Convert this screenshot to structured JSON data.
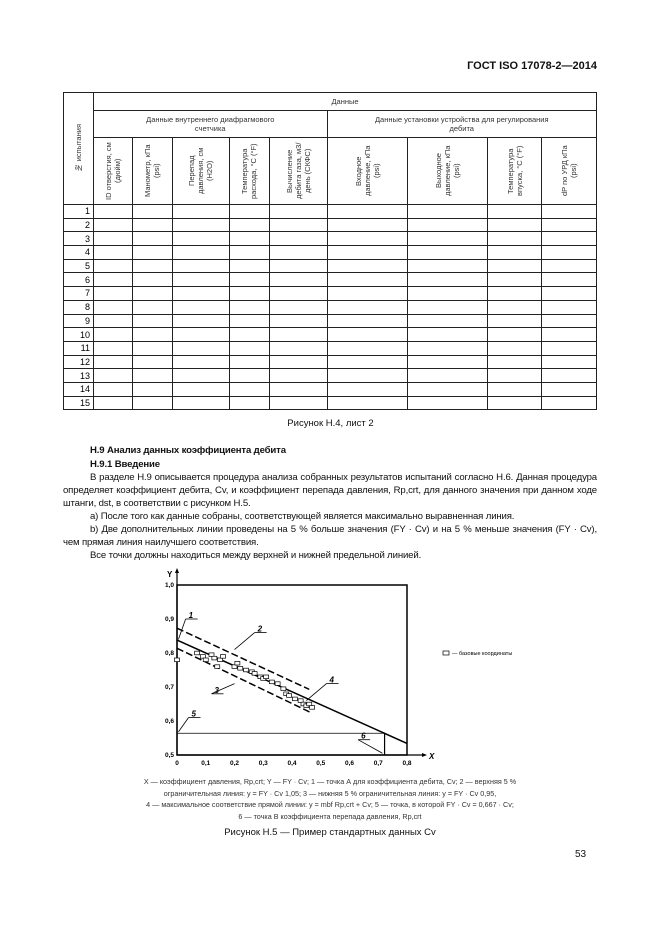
{
  "header": {
    "standard": "ГОСТ ISO 17078-2—2014"
  },
  "table": {
    "top_header": "Данные",
    "row_header": "№ испытания",
    "group1": "Данные внутреннего диафрагмового счетчика",
    "group2": "Данные установки устройства для регулирования дебита",
    "columns": [
      "ID отверстия, см (дюйм)",
      "Манометр, кПа (psi)",
      "Перепад давления, см (H2O)",
      "Температура расхода, °C (°F)",
      "Вычисление дебита газа, м3/день (СКФС)",
      "Входное давление, кПа (psi)",
      "Выходное давление, кПа (psi)",
      "Температура впуска, °C (°F)",
      "dP по УРД кПа (psi)"
    ],
    "rows": [
      "1",
      "2",
      "3",
      "4",
      "5",
      "6",
      "7",
      "8",
      "9",
      "10",
      "11",
      "12",
      "13",
      "14",
      "15"
    ]
  },
  "table_caption": "Рисунок Н.4, лист 2",
  "section": {
    "title": "Н.9 Анализ данных коэффициента дебита",
    "subtitle": "Н.9.1 Введение",
    "p1": "В разделе Н.9 описывается процедура анализа собранных результатов испытаний согласно Н.6. Данная процедура определяет коэффициент дебита, Cv, и коэффициент перепада давления, Rp,crt, для данного значения при данном ходе штанги, dst, в соответствии с рисунком Н.5.",
    "p2": "a) После того как данные собраны, соответствующей является максимально выравненная линия.",
    "p3": "b) Две дополнительных линии проведены на 5 % больше значения (FY · Cv) и на 5 % меньше значения (FY · Cv), чем прямая линия наилучшего соответствия.",
    "p4": "Все точки должны находиться между верхней и нижней предельной линией."
  },
  "chart_data": {
    "type": "scatter",
    "xlabel": "X",
    "ylabel": "Y",
    "xlim": [
      0,
      0.8
    ],
    "ylim": [
      0.5,
      1.0
    ],
    "x_ticks": [
      "0",
      "0,1",
      "0,2",
      "0,3",
      "0,4",
      "0,5",
      "0,6",
      "0,7",
      "0,8"
    ],
    "y_ticks": [
      "0,5",
      "0,6",
      "0,7",
      "0,8",
      "0,9",
      "1,0"
    ],
    "legend": "базовые координаты",
    "legend_position": "right",
    "points": [
      [
        0,
        0.78
      ],
      [
        0.07,
        0.8
      ],
      [
        0.09,
        0.79
      ],
      [
        0.1,
        0.78
      ],
      [
        0.12,
        0.795
      ],
      [
        0.13,
        0.785
      ],
      [
        0.14,
        0.76
      ],
      [
        0.15,
        0.78
      ],
      [
        0.16,
        0.79
      ],
      [
        0.2,
        0.76
      ],
      [
        0.21,
        0.77
      ],
      [
        0.22,
        0.755
      ],
      [
        0.24,
        0.75
      ],
      [
        0.26,
        0.745
      ],
      [
        0.27,
        0.74
      ],
      [
        0.29,
        0.73
      ],
      [
        0.3,
        0.725
      ],
      [
        0.31,
        0.73
      ],
      [
        0.33,
        0.715
      ],
      [
        0.35,
        0.71
      ],
      [
        0.37,
        0.695
      ],
      [
        0.38,
        0.68
      ],
      [
        0.39,
        0.675
      ],
      [
        0.41,
        0.665
      ],
      [
        0.43,
        0.66
      ],
      [
        0.44,
        0.65
      ],
      [
        0.45,
        0.645
      ],
      [
        0.46,
        0.65
      ],
      [
        0.47,
        0.64
      ]
    ],
    "lines": [
      {
        "label": "4",
        "style": "solid",
        "from": [
          0,
          0.838
        ],
        "to": [
          0.8,
          0.534
        ]
      },
      {
        "label": "2",
        "style": "dashed",
        "from": [
          0,
          0.873
        ],
        "to": [
          0.46,
          0.693
        ]
      },
      {
        "label": "3",
        "style": "dashed",
        "from": [
          0,
          0.814
        ],
        "to": [
          0.47,
          0.623
        ]
      }
    ],
    "point_5_y": 0.564,
    "point_6_x": 0.722,
    "callouts": [
      "1",
      "2",
      "3",
      "4",
      "5",
      "6"
    ]
  },
  "figure_legend": {
    "l1": "X — коэффициент давления, Rp,crt; Y — FY · Cv; 1 — точка А для коэффициента дебита, Cv; 2 — верхняя 5 %",
    "l2": "ограничительная линия: y = FY · Cv 1,05; 3 — нижняя 5 % ограничительная линия: y = FY · Cv 0,95,",
    "l3": "4 — максимальное соответствие прямой линии: y = mbf Rp,crt + Cv; 5 — точка, в которой FY · Cv = 0,667 · Cv;",
    "l4": "6 — точка В коэффициента перепада давления, Rp,crt"
  },
  "figure_caption": "Рисунок Н.5 — Пример стандартных данных Cv",
  "page_number": "53"
}
